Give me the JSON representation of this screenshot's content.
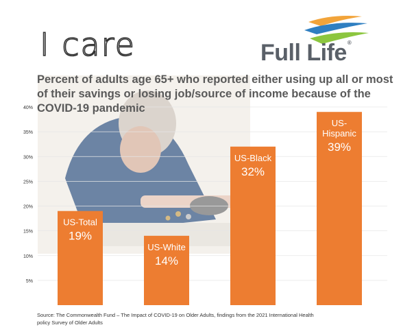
{
  "brand": {
    "tagline": "I care",
    "logo_name": "Full Life",
    "logo_mark": "®"
  },
  "colors": {
    "bar": "#ed7d31",
    "bar_label": "#ffffff",
    "text": "#595959",
    "grid": "#e6e6e6"
  },
  "chart_data": {
    "type": "bar",
    "title": "Percent of adults age 65+ who reported either using up all or most of their savings or losing job/source of income because of the COVID-19 pandemic",
    "categories": [
      "US-Total",
      "US-White",
      "US-Black",
      "US-Hispanic"
    ],
    "values": [
      19,
      14,
      32,
      39
    ],
    "value_labels": [
      "19%",
      "14%",
      "32%",
      "39%"
    ],
    "ylim": [
      0,
      40
    ],
    "yticks": [
      5,
      10,
      15,
      20,
      25,
      30,
      35,
      40
    ],
    "ytick_labels": [
      "5%",
      "10%",
      "15%",
      "20%",
      "25%",
      "30%",
      "35%",
      "40%"
    ],
    "xlabel": "",
    "ylabel": "",
    "legend": "none"
  },
  "source_text": "Source: The Commonwealth Fund – The Impact of COVID-19 on Older Adults, findings from the 2021 International Health policy Survey of Older Adults"
}
